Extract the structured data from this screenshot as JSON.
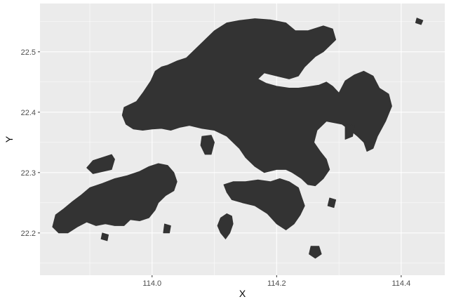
{
  "chart_data": {
    "type": "map",
    "xlabel": "X",
    "ylabel": "Y",
    "xlim": [
      113.82,
      114.47
    ],
    "ylim": [
      22.13,
      22.58
    ],
    "x_ticks": [
      114.0,
      114.2,
      114.4
    ],
    "x_tick_labels": [
      "114.0",
      "114.2",
      "114.4"
    ],
    "y_ticks": [
      22.2,
      22.3,
      22.4,
      22.5
    ],
    "y_tick_labels": [
      "22.2",
      "22.3",
      "22.4",
      "22.5"
    ],
    "grid": true,
    "colors": {
      "panel": "#ebebeb",
      "grid_major": "#ffffff",
      "land": "#333333"
    },
    "regions": [
      {
        "name": "new-territories-kowloon",
        "coords": [
          [
            113.955,
            22.408
          ],
          [
            113.975,
            22.418
          ],
          [
            113.985,
            22.432
          ],
          [
            113.998,
            22.452
          ],
          [
            114.005,
            22.468
          ],
          [
            114.015,
            22.475
          ],
          [
            114.025,
            22.478
          ],
          [
            114.04,
            22.485
          ],
          [
            114.055,
            22.49
          ],
          [
            114.07,
            22.505
          ],
          [
            114.085,
            22.52
          ],
          [
            114.1,
            22.535
          ],
          [
            114.12,
            22.548
          ],
          [
            114.14,
            22.552
          ],
          [
            114.165,
            22.555
          ],
          [
            114.19,
            22.553
          ],
          [
            114.215,
            22.548
          ],
          [
            114.23,
            22.535
          ],
          [
            114.25,
            22.535
          ],
          [
            114.275,
            22.543
          ],
          [
            114.29,
            22.538
          ],
          [
            114.295,
            22.52
          ],
          [
            114.285,
            22.51
          ],
          [
            114.275,
            22.5
          ],
          [
            114.262,
            22.492
          ],
          [
            114.245,
            22.475
          ],
          [
            114.235,
            22.46
          ],
          [
            114.22,
            22.455
          ],
          [
            114.2,
            22.46
          ],
          [
            114.18,
            22.465
          ],
          [
            114.17,
            22.455
          ],
          [
            114.183,
            22.448
          ],
          [
            114.2,
            22.443
          ],
          [
            114.22,
            22.44
          ],
          [
            114.235,
            22.44
          ],
          [
            114.25,
            22.442
          ],
          [
            114.268,
            22.445
          ],
          [
            114.28,
            22.45
          ],
          [
            114.29,
            22.443
          ],
          [
            114.3,
            22.432
          ],
          [
            114.31,
            22.452
          ],
          [
            114.325,
            22.462
          ],
          [
            114.34,
            22.468
          ],
          [
            114.355,
            22.46
          ],
          [
            114.365,
            22.44
          ],
          [
            114.38,
            22.43
          ],
          [
            114.385,
            22.41
          ],
          [
            114.375,
            22.385
          ],
          [
            114.362,
            22.36
          ],
          [
            114.355,
            22.34
          ],
          [
            114.345,
            22.335
          ],
          [
            114.34,
            22.35
          ],
          [
            114.33,
            22.36
          ],
          [
            114.318,
            22.37
          ],
          [
            114.305,
            22.38
          ],
          [
            114.28,
            22.385
          ],
          [
            114.265,
            22.37
          ],
          [
            114.26,
            22.35
          ],
          [
            114.27,
            22.335
          ],
          [
            114.28,
            22.322
          ],
          [
            114.285,
            22.305
          ],
          [
            114.275,
            22.29
          ],
          [
            114.262,
            22.278
          ],
          [
            114.25,
            22.28
          ],
          [
            114.24,
            22.29
          ],
          [
            114.225,
            22.3
          ],
          [
            114.215,
            22.305
          ],
          [
            114.2,
            22.305
          ],
          [
            114.18,
            22.3
          ],
          [
            114.165,
            22.31
          ],
          [
            114.15,
            22.325
          ],
          [
            114.14,
            22.34
          ],
          [
            114.13,
            22.35
          ],
          [
            114.12,
            22.36
          ],
          [
            114.1,
            22.37
          ],
          [
            114.08,
            22.373
          ],
          [
            114.06,
            22.378
          ],
          [
            114.045,
            22.375
          ],
          [
            114.03,
            22.37
          ],
          [
            114.015,
            22.373
          ],
          [
            114.0,
            22.372
          ],
          [
            113.985,
            22.37
          ],
          [
            113.97,
            22.372
          ],
          [
            113.958,
            22.38
          ],
          [
            113.952,
            22.395
          ]
        ]
      },
      {
        "name": "lantau-island",
        "coords": [
          [
            113.845,
            22.23
          ],
          [
            113.858,
            22.24
          ],
          [
            113.872,
            22.252
          ],
          [
            113.885,
            22.262
          ],
          [
            113.9,
            22.275
          ],
          [
            113.92,
            22.282
          ],
          [
            113.94,
            22.29
          ],
          [
            113.96,
            22.295
          ],
          [
            113.98,
            22.302
          ],
          [
            113.995,
            22.31
          ],
          [
            114.01,
            22.315
          ],
          [
            114.025,
            22.312
          ],
          [
            114.035,
            22.3
          ],
          [
            114.04,
            22.285
          ],
          [
            114.035,
            22.27
          ],
          [
            114.022,
            22.262
          ],
          [
            114.01,
            22.25
          ],
          [
            114.005,
            22.238
          ],
          [
            113.995,
            22.225
          ],
          [
            113.98,
            22.22
          ],
          [
            113.965,
            22.222
          ],
          [
            113.955,
            22.212
          ],
          [
            113.94,
            22.212
          ],
          [
            113.925,
            22.215
          ],
          [
            113.91,
            22.212
          ],
          [
            113.895,
            22.218
          ],
          [
            113.88,
            22.21
          ],
          [
            113.865,
            22.2
          ],
          [
            113.85,
            22.2
          ],
          [
            113.84,
            22.21
          ]
        ]
      },
      {
        "name": "hong-kong-island",
        "coords": [
          [
            114.115,
            22.28
          ],
          [
            114.13,
            22.285
          ],
          [
            114.15,
            22.285
          ],
          [
            114.17,
            22.288
          ],
          [
            114.19,
            22.285
          ],
          [
            114.205,
            22.29
          ],
          [
            114.22,
            22.285
          ],
          [
            114.235,
            22.275
          ],
          [
            114.24,
            22.26
          ],
          [
            114.245,
            22.245
          ],
          [
            114.238,
            22.23
          ],
          [
            114.228,
            22.215
          ],
          [
            114.215,
            22.205
          ],
          [
            114.2,
            22.215
          ],
          [
            114.185,
            22.232
          ],
          [
            114.165,
            22.245
          ],
          [
            114.145,
            22.25
          ],
          [
            114.128,
            22.255
          ],
          [
            114.12,
            22.267
          ]
        ]
      },
      {
        "name": "lamma-island",
        "coords": [
          [
            114.12,
            22.232
          ],
          [
            114.128,
            22.228
          ],
          [
            114.13,
            22.215
          ],
          [
            114.125,
            22.2
          ],
          [
            114.118,
            22.19
          ],
          [
            114.11,
            22.2
          ],
          [
            114.105,
            22.212
          ],
          [
            114.11,
            22.225
          ]
        ]
      },
      {
        "name": "chek-lap-kok",
        "coords": [
          [
            113.905,
            22.32
          ],
          [
            113.935,
            22.33
          ],
          [
            113.94,
            22.322
          ],
          [
            113.935,
            22.305
          ],
          [
            113.905,
            22.298
          ],
          [
            113.895,
            22.308
          ]
        ]
      },
      {
        "name": "ma-wan-tsing-yi",
        "coords": [
          [
            114.08,
            22.36
          ],
          [
            114.095,
            22.362
          ],
          [
            114.1,
            22.35
          ],
          [
            114.095,
            22.33
          ],
          [
            114.085,
            22.33
          ],
          [
            114.078,
            22.345
          ]
        ]
      },
      {
        "name": "po-toi",
        "coords": [
          [
            114.255,
            22.178
          ],
          [
            114.268,
            22.178
          ],
          [
            114.272,
            22.165
          ],
          [
            114.262,
            22.158
          ],
          [
            114.252,
            22.165
          ]
        ]
      },
      {
        "name": "cheung-chau",
        "coords": [
          [
            114.02,
            22.215
          ],
          [
            114.03,
            22.212
          ],
          [
            114.028,
            22.2
          ],
          [
            114.018,
            22.2
          ]
        ]
      },
      {
        "name": "tung-lung",
        "coords": [
          [
            114.285,
            22.258
          ],
          [
            114.295,
            22.255
          ],
          [
            114.292,
            22.242
          ],
          [
            114.282,
            22.245
          ]
        ]
      },
      {
        "name": "tap-mun-island",
        "coords": [
          [
            114.425,
            22.556
          ],
          [
            114.435,
            22.552
          ],
          [
            114.432,
            22.545
          ],
          [
            114.423,
            22.548
          ]
        ]
      },
      {
        "name": "kau-sai-chau",
        "coords": [
          [
            114.31,
            22.38
          ],
          [
            114.325,
            22.378
          ],
          [
            114.322,
            22.36
          ],
          [
            114.31,
            22.355
          ]
        ]
      },
      {
        "name": "shek-kwu-chau",
        "coords": [
          [
            113.92,
            22.2
          ],
          [
            113.93,
            22.197
          ],
          [
            113.928,
            22.187
          ],
          [
            113.918,
            22.19
          ]
        ]
      }
    ]
  }
}
